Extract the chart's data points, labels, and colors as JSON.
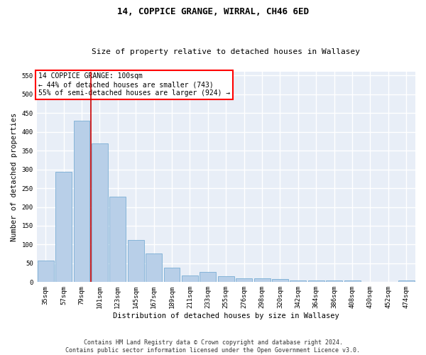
{
  "title": "14, COPPICE GRANGE, WIRRAL, CH46 6ED",
  "subtitle": "Size of property relative to detached houses in Wallasey",
  "xlabel": "Distribution of detached houses by size in Wallasey",
  "ylabel": "Number of detached properties",
  "footer_line1": "Contains HM Land Registry data © Crown copyright and database right 2024.",
  "footer_line2": "Contains public sector information licensed under the Open Government Licence v3.0.",
  "bar_labels": [
    "35sqm",
    "57sqm",
    "79sqm",
    "101sqm",
    "123sqm",
    "145sqm",
    "167sqm",
    "189sqm",
    "211sqm",
    "233sqm",
    "255sqm",
    "276sqm",
    "298sqm",
    "320sqm",
    "342sqm",
    "364sqm",
    "386sqm",
    "408sqm",
    "430sqm",
    "452sqm",
    "474sqm"
  ],
  "bar_values": [
    57,
    293,
    430,
    370,
    227,
    113,
    77,
    38,
    17,
    27,
    15,
    10,
    10,
    8,
    5,
    5,
    5,
    5,
    1,
    1,
    5
  ],
  "bar_color": "#b8cfe8",
  "bar_edgecolor": "#7aadd4",
  "background_color": "#e8eef7",
  "grid_color": "#ffffff",
  "fig_background": "#ffffff",
  "ylim": [
    0,
    560
  ],
  "yticks": [
    0,
    50,
    100,
    150,
    200,
    250,
    300,
    350,
    400,
    450,
    500,
    550
  ],
  "annotation_title": "14 COPPICE GRANGE: 100sqm",
  "annotation_line2": "← 44% of detached houses are smaller (743)",
  "annotation_line3": "55% of semi-detached houses are larger (924) →",
  "redline_bar_idx": 3,
  "title_fontsize": 9,
  "subtitle_fontsize": 8,
  "tick_fontsize": 6.5,
  "ylabel_fontsize": 7.5,
  "xlabel_fontsize": 7.5,
  "annotation_fontsize": 7,
  "footer_fontsize": 6
}
